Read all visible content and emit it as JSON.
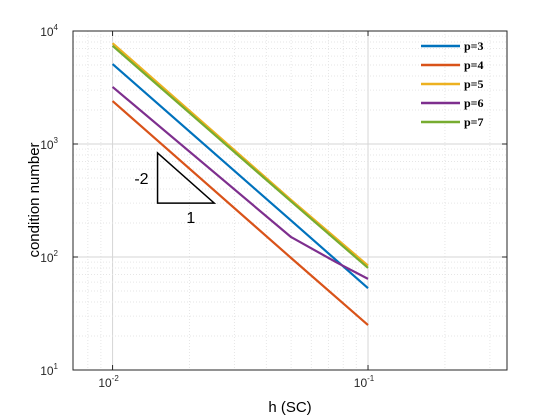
{
  "chart_data": {
    "type": "line",
    "xlabel": "h (SC)",
    "ylabel": "condition number",
    "x_scale": "log",
    "y_scale": "log",
    "xlim": [
      0.007,
      0.35
    ],
    "ylim": [
      10,
      10000
    ],
    "grid": true,
    "minor_grid": true,
    "legend_position": "top-right",
    "x_ticks": [
      {
        "value": 0.01,
        "base": "10",
        "exp": "-2"
      },
      {
        "value": 0.1,
        "base": "10",
        "exp": "-1"
      }
    ],
    "y_ticks": [
      {
        "value": 10,
        "base": "10",
        "exp": "1"
      },
      {
        "value": 100,
        "base": "10",
        "exp": "2"
      },
      {
        "value": 1000,
        "base": "10",
        "exp": "3"
      },
      {
        "value": 10000,
        "base": "10",
        "exp": "4"
      }
    ],
    "series": [
      {
        "name": "p=3",
        "color": "#0072bd",
        "x": [
          0.01,
          0.05,
          0.1
        ],
        "y": [
          5100,
          210,
          53
        ]
      },
      {
        "name": "p=4",
        "color": "#d95319",
        "x": [
          0.01,
          0.05,
          0.1
        ],
        "y": [
          2400,
          98,
          25
        ]
      },
      {
        "name": "p=5",
        "color": "#edb120",
        "x": [
          0.01,
          0.05,
          0.1
        ],
        "y": [
          7800,
          320,
          84
        ]
      },
      {
        "name": "p=6",
        "color": "#7e2f8e",
        "x": [
          0.01,
          0.05,
          0.075,
          0.1
        ],
        "y": [
          3200,
          150,
          90,
          64
        ]
      },
      {
        "name": "p=7",
        "color": "#77ac30",
        "x": [
          0.01,
          0.05,
          0.1
        ],
        "y": [
          7400,
          310,
          80
        ]
      }
    ],
    "annotations": {
      "slope_triangle": {
        "x_start": 0.015,
        "x_end": 0.025,
        "y_base": 300,
        "slope": -2
      },
      "slope_label": "-2",
      "run_label": "1"
    }
  }
}
